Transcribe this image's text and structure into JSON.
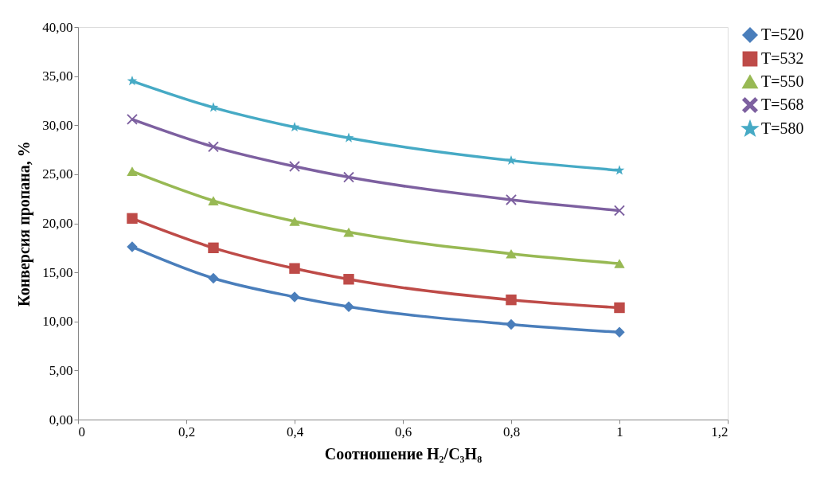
{
  "chart_data": {
    "type": "line",
    "xlabel": "Соотношение H₂/C₃H₈",
    "ylabel": "Конверсия пропана, %",
    "x": [
      0.1,
      0.25,
      0.4,
      0.5,
      0.8,
      1
    ],
    "series": [
      {
        "name": "T=520",
        "color": "#4a7ebb",
        "marker": "diamond",
        "values": [
          17.6,
          14.4,
          12.5,
          11.5,
          9.7,
          8.9
        ]
      },
      {
        "name": "T=532",
        "color": "#be4b48",
        "marker": "square",
        "values": [
          20.5,
          17.5,
          15.4,
          14.3,
          12.2,
          11.4
        ]
      },
      {
        "name": "T=550",
        "color": "#98b954",
        "marker": "triangle",
        "values": [
          25.3,
          22.3,
          20.2,
          19.1,
          16.9,
          15.9
        ]
      },
      {
        "name": "T=568",
        "color": "#7d60a0",
        "marker": "cross",
        "values": [
          30.6,
          27.8,
          25.8,
          24.7,
          22.4,
          21.3
        ]
      },
      {
        "name": "T=580",
        "color": "#46aac5",
        "marker": "star",
        "values": [
          34.5,
          31.8,
          29.8,
          28.7,
          26.4,
          25.4
        ]
      }
    ],
    "xlim": [
      0,
      1.2
    ],
    "xticks": [
      0,
      {
        "value": 0.2,
        "label": "0,2"
      },
      {
        "value": 0.4,
        "label": "0,4"
      },
      {
        "value": 0.6,
        "label": "0,6"
      },
      {
        "value": 0.8,
        "label": "0,8"
      },
      1,
      {
        "value": 1.2,
        "label": "1,2"
      }
    ],
    "ylim": [
      0,
      40
    ],
    "yticks": [
      {
        "value": 0,
        "label": "0,00"
      },
      {
        "value": 5,
        "label": "5,00"
      },
      {
        "value": 10,
        "label": "10,00"
      },
      {
        "value": 15,
        "label": "15,00"
      },
      {
        "value": 20,
        "label": "20,00"
      },
      {
        "value": 25,
        "label": "25,00"
      },
      {
        "value": 30,
        "label": "30,00"
      },
      {
        "value": 35,
        "label": "35,00"
      },
      {
        "value": 40,
        "label": "40,00"
      }
    ],
    "grid": false,
    "legend": "right",
    "line_style": "solid"
  }
}
